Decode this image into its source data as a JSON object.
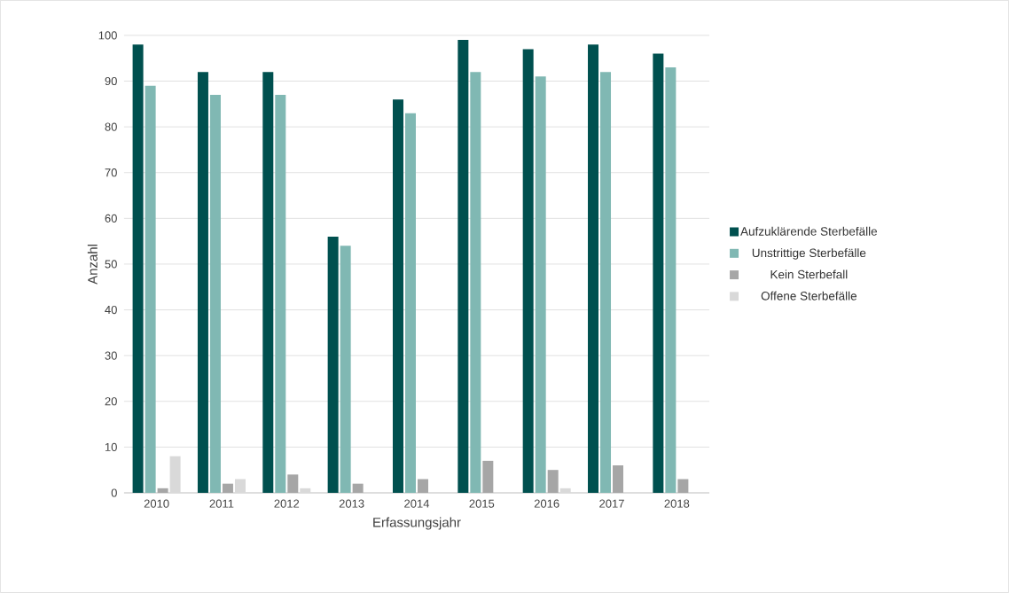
{
  "chart_data": {
    "type": "bar",
    "xlabel": "Erfassungsjahr",
    "ylabel": "Anzahl",
    "categories": [
      "2010",
      "2011",
      "2012",
      "2013",
      "2014",
      "2015",
      "2016",
      "2017",
      "2018"
    ],
    "series": [
      {
        "name": "Aufzuklärende Sterbefälle",
        "color": "#00504f",
        "values": [
          98,
          92,
          92,
          56,
          86,
          99,
          97,
          98,
          96
        ]
      },
      {
        "name": "Unstrittige Sterbefälle",
        "color": "#80b8b3",
        "values": [
          89,
          87,
          87,
          54,
          83,
          92,
          91,
          92,
          93
        ]
      },
      {
        "name": "Kein Sterbefall",
        "color": "#a6a6a6",
        "values": [
          1,
          2,
          4,
          2,
          3,
          7,
          5,
          6,
          3
        ]
      },
      {
        "name": "Offene Sterbefälle",
        "color": "#d9d9d9",
        "values": [
          8,
          3,
          1,
          0,
          0,
          0,
          1,
          0,
          0
        ]
      }
    ],
    "ylim": [
      0,
      100
    ],
    "yticks": [
      0,
      10,
      20,
      30,
      40,
      50,
      60,
      70,
      80,
      90,
      100
    ],
    "grid": "y",
    "legend": "right"
  }
}
